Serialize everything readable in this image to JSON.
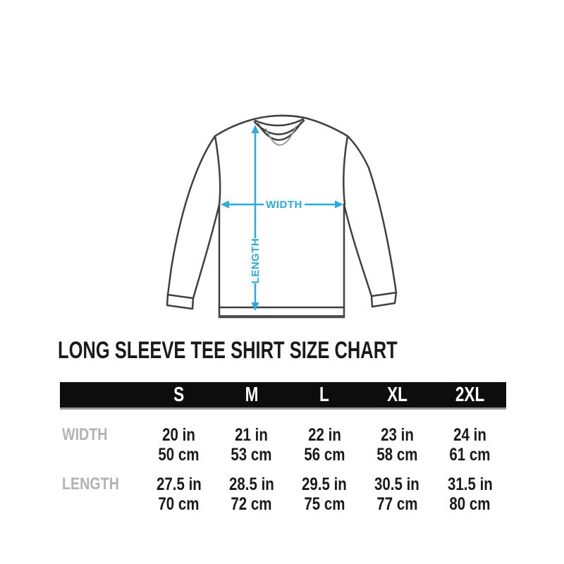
{
  "title": "LONG SLEEVE TEE SHIRT SIZE CHART",
  "diagram": {
    "width_label": "WIDTH",
    "length_label": "LENGTH",
    "arrow_color": "#29ABE2",
    "outline_color": "#404040"
  },
  "size_chart": {
    "columns": [
      "S",
      "M",
      "L",
      "XL",
      "2XL"
    ],
    "rows": [
      {
        "label": "WIDTH",
        "cells": [
          [
            "20 in",
            "50 cm"
          ],
          [
            "21 in",
            "53 cm"
          ],
          [
            "22 in",
            "56 cm"
          ],
          [
            "23 in",
            "58 cm"
          ],
          [
            "24 in",
            "61 cm"
          ]
        ]
      },
      {
        "label": "LENGTH",
        "cells": [
          [
            "27.5 in",
            "70 cm"
          ],
          [
            "28.5 in",
            "72 cm"
          ],
          [
            "29.5 in",
            "75 cm"
          ],
          [
            "30.5 in",
            "77 cm"
          ],
          [
            "31.5 in",
            "80 cm"
          ]
        ]
      }
    ]
  }
}
